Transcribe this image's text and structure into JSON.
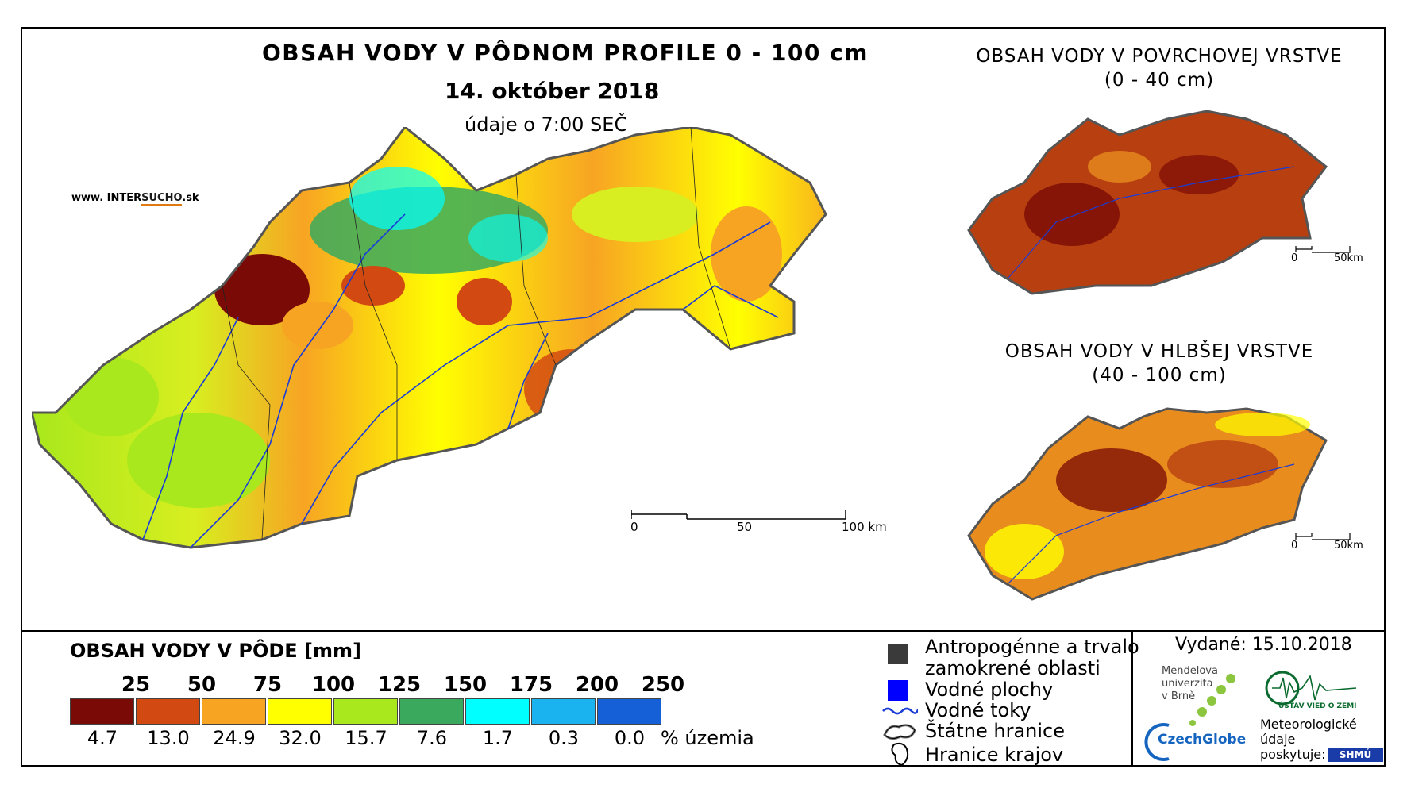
{
  "title": "OBSAH VODY V PÔDNOM PROFILE 0 - 100 cm",
  "date": "14. október 2018",
  "time_note": "údaje o 7:00 SEČ",
  "website": {
    "prefix": "www. INTER",
    "accent": "SUCHO",
    "suffix": ".sk"
  },
  "inset_top": {
    "title_line1": "OBSAH VODY V POVRCHOVEJ VRSTVE",
    "title_line2": "(0 - 40 cm)",
    "scale_zero": "0",
    "scale_end": "50km"
  },
  "inset_bottom": {
    "title_line1": "OBSAH VODY V HLBŠEJ VRSTVE",
    "title_line2": "(40 - 100 cm)",
    "scale_zero": "0",
    "scale_end": "50km"
  },
  "main_scale": {
    "zero": "0",
    "mid": "50",
    "end": "100 km"
  },
  "legend": {
    "title": "OBSAH VODY V PÔDE [mm]",
    "class_labels": [
      "25",
      "50",
      "75",
      "100",
      "125",
      "150",
      "175",
      "200",
      "250"
    ],
    "percentages": [
      "4.7",
      "13.0",
      "24.9",
      "32.0",
      "15.7",
      "7.6",
      "1.7",
      "0.3",
      "0.0"
    ],
    "colors": [
      "#7a0a05",
      "#d24a12",
      "#f7a423",
      "#ffff00",
      "#a8e81c",
      "#3aa95e",
      "#00ffff",
      "#1ab3f0",
      "#1560d6"
    ],
    "percent_unit": "% územia"
  },
  "symbols": {
    "anthro_line1": "Antropogénne a trvalo",
    "anthro_line2": "zamokrené oblasti",
    "water_bodies": "Vodné plochy",
    "rivers": "Vodné toky",
    "state_border": "Štátne hranice",
    "regional_border": "Hranice krajov"
  },
  "issued": "Vydané: 15.10.2018",
  "logos": {
    "mendel": [
      "Mendelova",
      "univerzita",
      "v Brně"
    ],
    "czechglobe": "CzechGlobe",
    "ustav": "ÚSTAV VIED O ZEMI",
    "meteo": [
      "Meteorologické",
      "údaje",
      "poskytuje:"
    ],
    "shmu": "SHMÚ"
  }
}
